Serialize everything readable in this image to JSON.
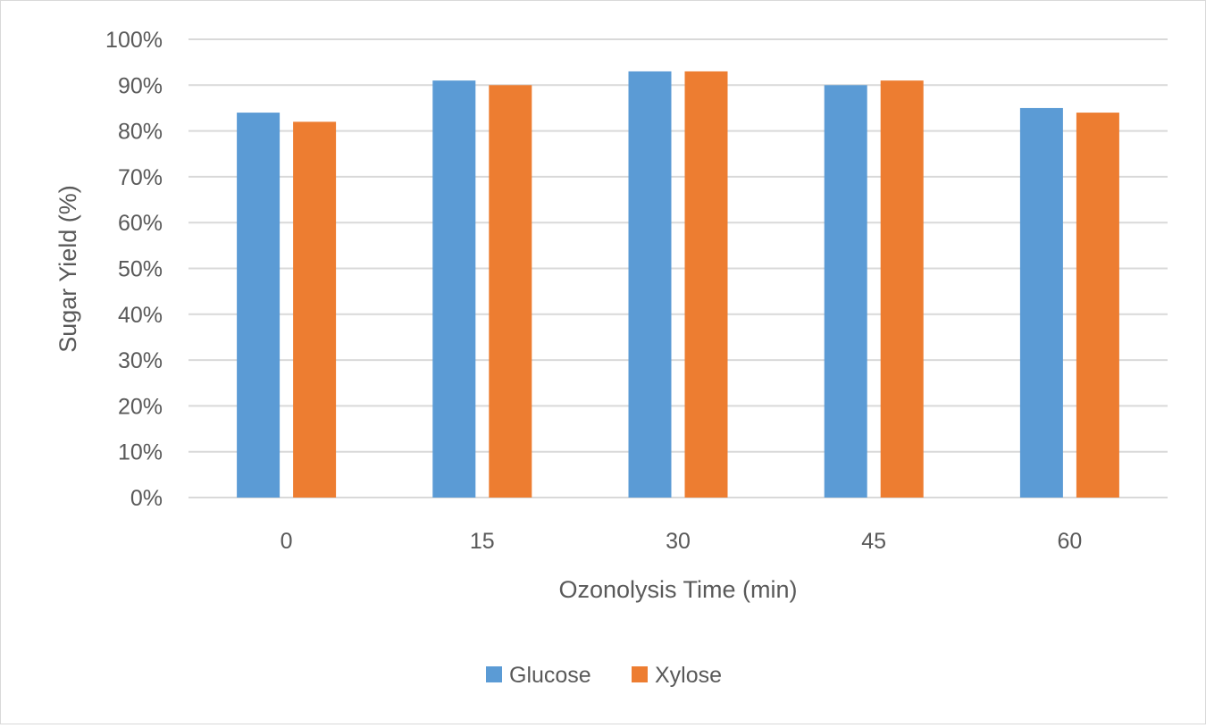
{
  "chart_data": {
    "type": "bar",
    "title": "",
    "xlabel": "Ozonolysis Time (min)",
    "ylabel": "Sugar Yield (%)",
    "categories": [
      "0",
      "15",
      "30",
      "45",
      "60"
    ],
    "series": [
      {
        "name": "Glucose",
        "color": "#5b9bd5",
        "values": [
          84,
          91,
          93,
          90,
          85
        ]
      },
      {
        "name": "Xylose",
        "color": "#ed7d31",
        "values": [
          82,
          90,
          93,
          91,
          84
        ]
      }
    ],
    "ylim": [
      0,
      100
    ],
    "yticks": [
      0,
      10,
      20,
      30,
      40,
      50,
      60,
      70,
      80,
      90,
      100
    ],
    "ytick_labels": [
      "0%",
      "10%",
      "20%",
      "30%",
      "40%",
      "50%",
      "60%",
      "70%",
      "80%",
      "90%",
      "100%"
    ],
    "grid": true,
    "gridline_color": "#d9d9d9",
    "legend_position": "bottom"
  }
}
